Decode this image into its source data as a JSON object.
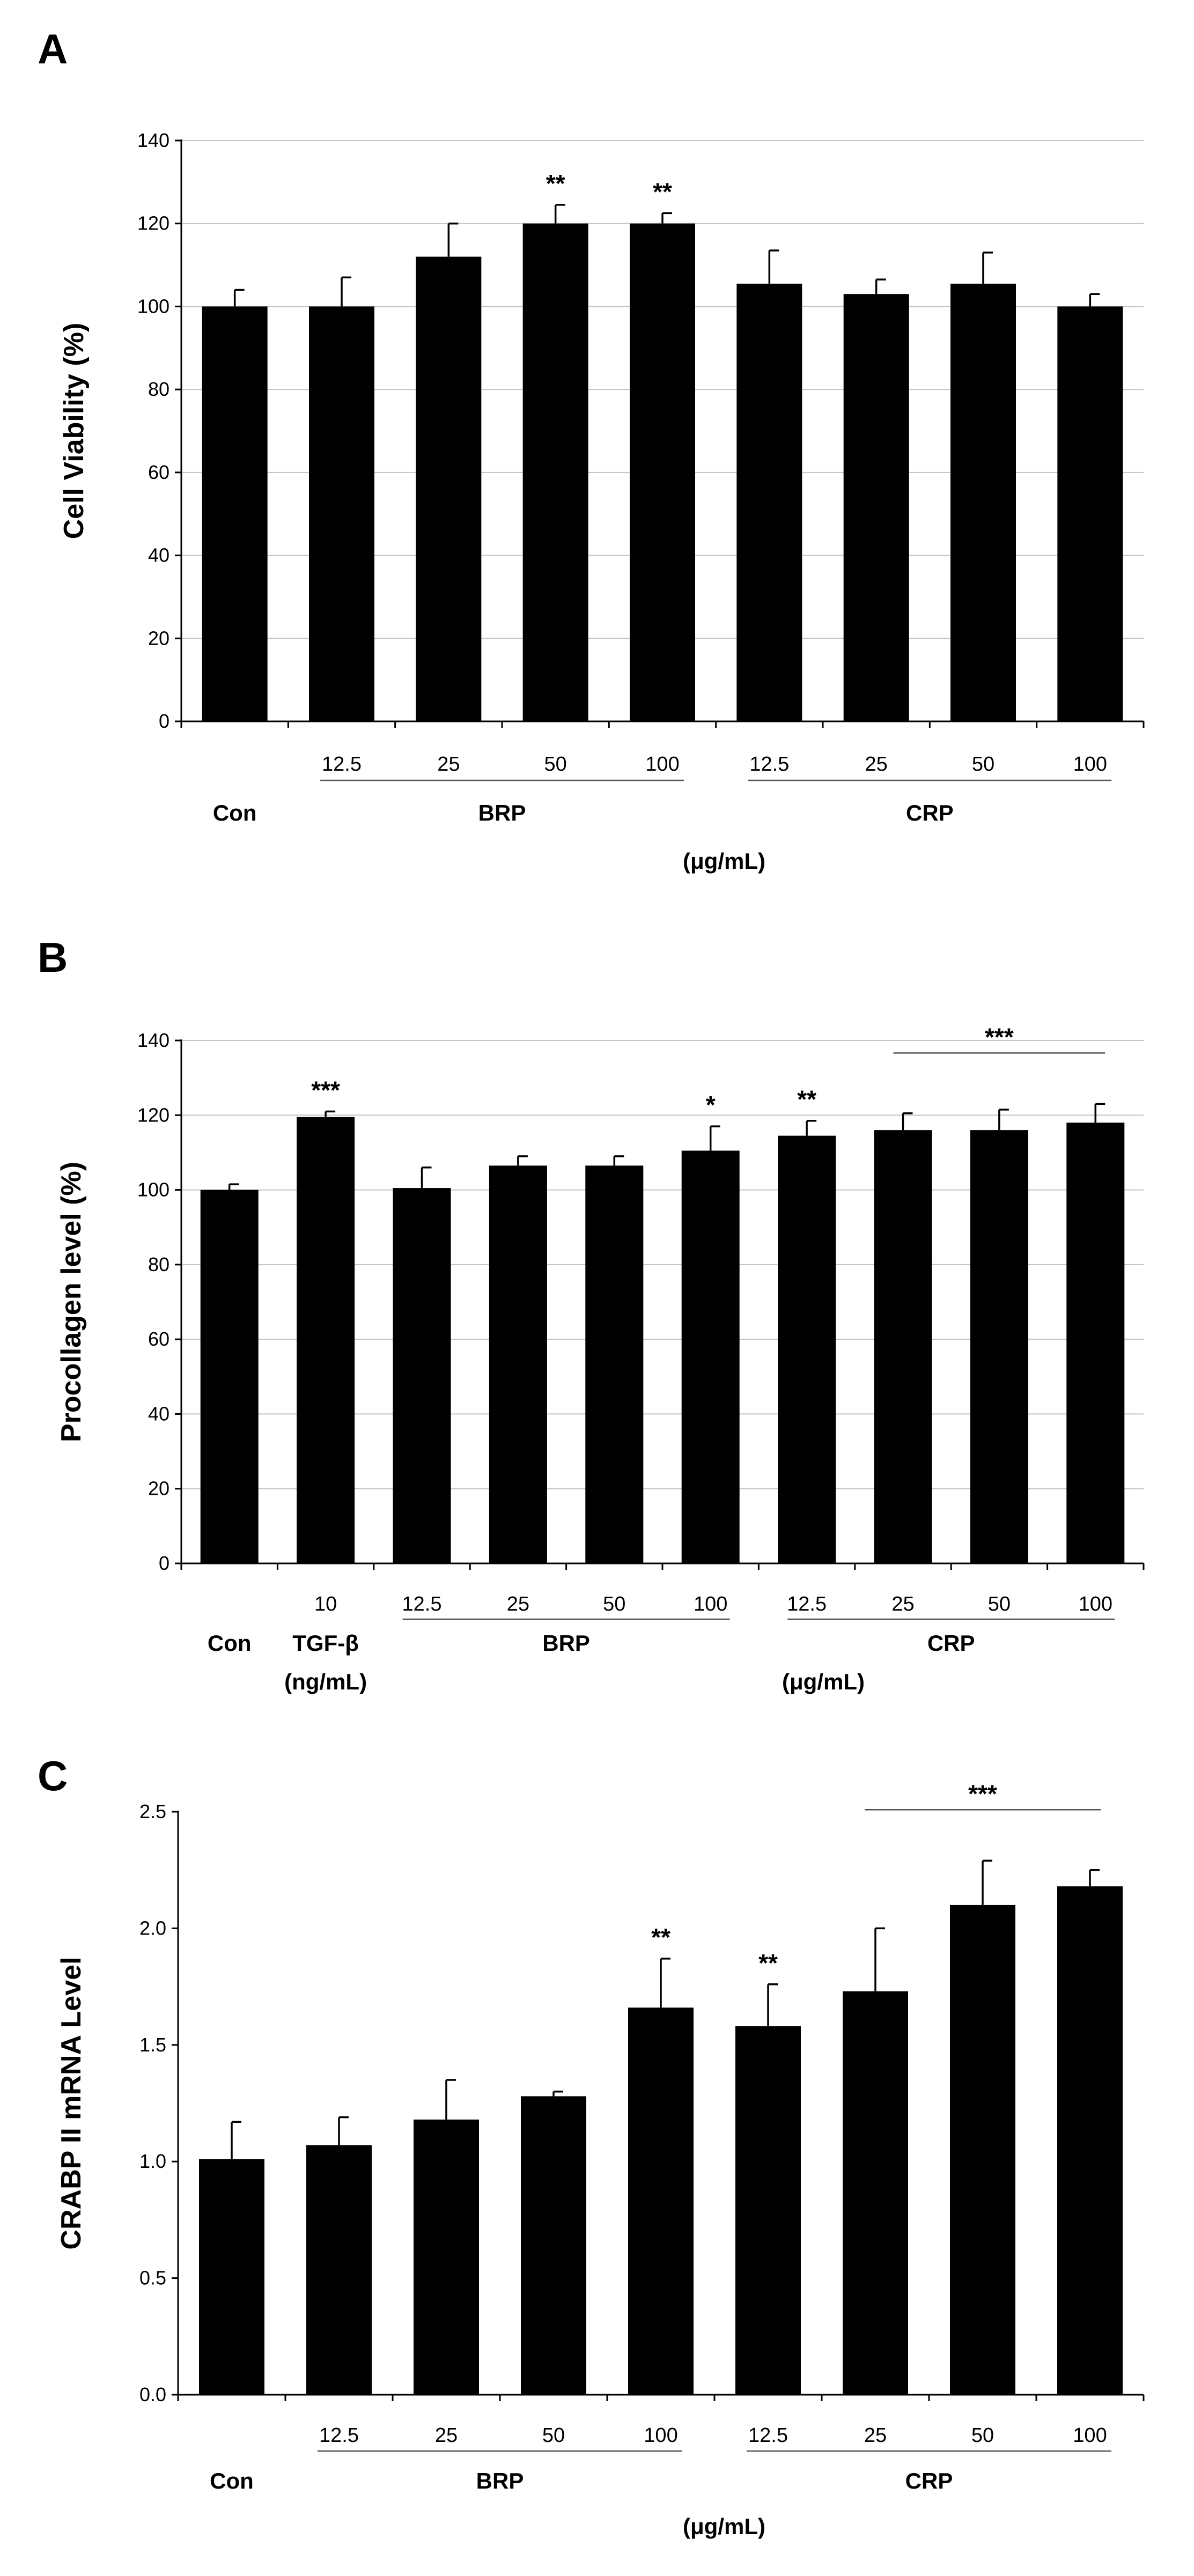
{
  "chart_data": [
    {
      "id": "A",
      "type": "bar",
      "panel_label": "A",
      "ylabel": "Cell Viability (%)",
      "ylim": [
        0,
        140
      ],
      "yticks": [
        "0",
        "20",
        "40",
        "60",
        "80",
        "100",
        "120",
        "140"
      ],
      "grid": true,
      "categories": [
        "",
        "12.5",
        "25",
        "50",
        "100",
        "12.5",
        "25",
        "50",
        "100"
      ],
      "values": [
        100,
        100,
        112,
        120,
        120,
        105.5,
        103,
        105.5,
        100
      ],
      "errors": [
        4,
        7,
        8,
        4.5,
        2.5,
        8,
        3.5,
        7.5,
        3
      ],
      "significance": [
        "",
        "",
        "",
        "**",
        "**",
        "",
        "",
        "",
        ""
      ],
      "bracket": null,
      "groups": [
        {
          "name": "Con",
          "from": 0,
          "to": 0,
          "line": false
        },
        {
          "name": "BRP",
          "from": 1,
          "to": 4,
          "line": true
        },
        {
          "name": "CRP",
          "from": 5,
          "to": 8,
          "line": true
        }
      ],
      "units": "(μg/mL)",
      "tgf_unit": ""
    },
    {
      "id": "B",
      "type": "bar",
      "panel_label": "B",
      "ylabel": "Procollagen level (%)",
      "ylim": [
        0,
        140
      ],
      "yticks": [
        "0",
        "20",
        "40",
        "60",
        "80",
        "100",
        "120",
        "140"
      ],
      "grid": true,
      "categories": [
        "",
        "10",
        "12.5",
        "25",
        "50",
        "100",
        "12.5",
        "25",
        "50",
        "100"
      ],
      "values": [
        100,
        119.5,
        100.5,
        106.5,
        106.5,
        110.5,
        114.5,
        116,
        116,
        118
      ],
      "errors": [
        1.5,
        1.5,
        5.5,
        2.5,
        2.5,
        6.5,
        4,
        4.5,
        5.5,
        5
      ],
      "significance": [
        "",
        "***",
        "",
        "",
        "",
        "*",
        "**",
        "",
        "",
        ""
      ],
      "bracket": {
        "from": 7,
        "to": 9,
        "label": "***"
      },
      "groups": [
        {
          "name": "Con",
          "from": 0,
          "to": 0,
          "line": false
        },
        {
          "name": "TGF-β",
          "from": 1,
          "to": 1,
          "line": false
        },
        {
          "name": "BRP",
          "from": 2,
          "to": 5,
          "line": true
        },
        {
          "name": "CRP",
          "from": 6,
          "to": 9,
          "line": true
        }
      ],
      "units": "(μg/mL)",
      "tgf_unit": "(ng/mL)"
    },
    {
      "id": "C",
      "type": "bar",
      "panel_label": "C",
      "ylabel": "CRABP II mRNA Level",
      "ylim": [
        0,
        2.5
      ],
      "yticks": [
        "0.0",
        "0.5",
        "1.0",
        "1.5",
        "2.0",
        "2.5"
      ],
      "grid": false,
      "categories": [
        "",
        "12.5",
        "25",
        "50",
        "100",
        "12.5",
        "25",
        "50",
        "100"
      ],
      "values": [
        1.01,
        1.07,
        1.18,
        1.28,
        1.66,
        1.58,
        1.73,
        2.1,
        2.18
      ],
      "errors": [
        0.16,
        0.12,
        0.17,
        0.02,
        0.21,
        0.18,
        0.27,
        0.19,
        0.07
      ],
      "significance": [
        "",
        "",
        "",
        "",
        "**",
        "**",
        "",
        "",
        ""
      ],
      "bracket": {
        "from": 6,
        "to": 8,
        "label": "***"
      },
      "groups": [
        {
          "name": "Con",
          "from": 0,
          "to": 0,
          "line": false
        },
        {
          "name": "BRP",
          "from": 1,
          "to": 4,
          "line": true
        },
        {
          "name": "CRP",
          "from": 5,
          "to": 8,
          "line": true
        }
      ],
      "units": "(μg/mL)",
      "tgf_unit": ""
    }
  ]
}
